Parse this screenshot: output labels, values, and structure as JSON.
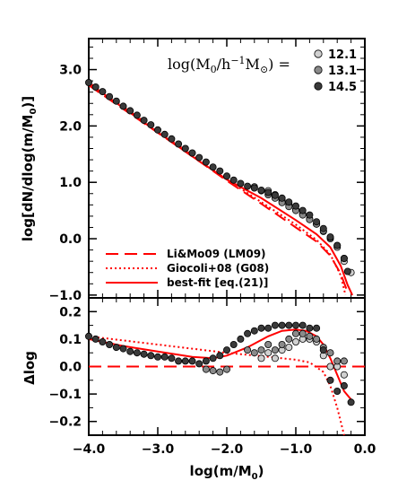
{
  "chart_data": [
    {
      "panel": "top",
      "type": "scatter",
      "xlim": [
        -4.0,
        0.0
      ],
      "ylim": [
        -1.05,
        3.55
      ],
      "ylabel": "log[dN/dlog(m/M0)]",
      "y_ticks": [
        3.0,
        2.0,
        1.0,
        0.0,
        -1.0
      ],
      "y_tick_labels": [
        "3.0",
        "2.0",
        "1.0",
        "0.0",
        "−1.0"
      ],
      "mass_legend": {
        "title": "log(M0/h⁻¹M⊙) =",
        "entries": [
          {
            "label": "12.1",
            "color": "#d0d0d0"
          },
          {
            "label": "13.1",
            "color": "#8a8a8a"
          },
          {
            "label": "14.5",
            "color": "#3a3a3a"
          }
        ]
      },
      "curves": [
        {
          "name": "Li&Mo09 (LM09)",
          "style": "dashed",
          "color": "#ff0000",
          "x": [
            -4.0,
            -3.5,
            -3.0,
            -2.5,
            -2.0,
            -1.5,
            -1.0,
            -0.7,
            -0.5,
            -0.35,
            -0.25
          ],
          "y": [
            2.72,
            2.3,
            1.88,
            1.46,
            1.03,
            0.62,
            0.2,
            -0.05,
            -0.3,
            -0.62,
            -0.95
          ]
        },
        {
          "name": "Giocoli+08 (G08)",
          "style": "dotted",
          "color": "#ff0000",
          "x": [
            -4.0,
            -3.5,
            -3.0,
            -2.5,
            -2.0,
            -1.5,
            -1.0,
            -0.7,
            -0.5,
            -0.35,
            -0.28
          ],
          "y": [
            2.78,
            2.34,
            1.91,
            1.48,
            1.05,
            0.65,
            0.25,
            -0.02,
            -0.28,
            -0.65,
            -1.0
          ]
        },
        {
          "name": "best-fit [eq.(21)]",
          "style": "solid",
          "color": "#ff0000",
          "x": [
            -4.0,
            -3.5,
            -3.0,
            -2.5,
            -2.0,
            -1.5,
            -1.0,
            -0.7,
            -0.5,
            -0.35,
            -0.25,
            -0.18
          ],
          "y": [
            2.76,
            2.32,
            1.89,
            1.46,
            1.05,
            0.72,
            0.33,
            0.08,
            -0.15,
            -0.48,
            -0.82,
            -1.0
          ]
        }
      ],
      "series": [
        {
          "name": "12.1",
          "color": "#d0d0d0",
          "x": [
            -1.4,
            -1.3,
            -1.2,
            -1.1,
            -1.0,
            -0.9,
            -0.8,
            -0.7,
            -0.6,
            -0.5,
            -0.4,
            -0.3,
            -0.2
          ],
          "y": [
            0.85,
            0.78,
            0.68,
            0.6,
            0.52,
            0.44,
            0.35,
            0.26,
            0.13,
            0.0,
            -0.15,
            -0.4,
            -0.6
          ]
        },
        {
          "name": "13.1",
          "color": "#8a8a8a",
          "x": [
            -1.6,
            -1.5,
            -1.4,
            -1.3,
            -1.2,
            -1.1,
            -1.0,
            -0.9,
            -0.8,
            -0.7,
            -0.6,
            -0.5,
            -0.4,
            -0.3
          ],
          "y": [
            0.92,
            0.85,
            0.78,
            0.72,
            0.64,
            0.57,
            0.5,
            0.42,
            0.34,
            0.26,
            0.14,
            0.02,
            -0.12,
            -0.35
          ]
        },
        {
          "name": "14.5",
          "color": "#3a3a3a",
          "x": [
            -4.0,
            -3.9,
            -3.8,
            -3.7,
            -3.6,
            -3.5,
            -3.4,
            -3.3,
            -3.2,
            -3.1,
            -3.0,
            -2.9,
            -2.8,
            -2.7,
            -2.6,
            -2.5,
            -2.4,
            -2.3,
            -2.2,
            -2.1,
            -2.0,
            -1.9,
            -1.8,
            -1.7,
            -1.6,
            -1.5,
            -1.4,
            -1.3,
            -1.2,
            -1.1,
            -1.0,
            -0.9,
            -0.8,
            -0.7,
            -0.6,
            -0.5,
            -0.4,
            -0.3,
            -0.25
          ],
          "y": [
            2.77,
            2.69,
            2.61,
            2.52,
            2.44,
            2.35,
            2.27,
            2.19,
            2.1,
            2.02,
            1.93,
            1.85,
            1.77,
            1.68,
            1.6,
            1.52,
            1.44,
            1.36,
            1.27,
            1.2,
            1.11,
            1.04,
            0.98,
            0.93,
            0.9,
            0.86,
            0.82,
            0.77,
            0.72,
            0.65,
            0.58,
            0.5,
            0.42,
            0.3,
            0.18,
            0.03,
            -0.12,
            -0.35,
            -0.58
          ]
        }
      ]
    },
    {
      "panel": "bottom",
      "type": "scatter",
      "xlim": [
        -4.0,
        0.0
      ],
      "ylim": [
        -0.25,
        0.25
      ],
      "xlabel": "log(m/M0)",
      "ylabel": "Δlog",
      "x_ticks": [
        -4.0,
        -3.0,
        -2.0,
        -1.0,
        0.0
      ],
      "x_tick_labels": [
        "−4.0",
        "−3.0",
        "−2.0",
        "−1.0",
        "0.0"
      ],
      "y_ticks": [
        0.2,
        0.1,
        0.0,
        -0.1,
        -0.2
      ],
      "y_tick_labels": [
        "0.2",
        "0.1",
        "0.0",
        "−0.1",
        "−0.2"
      ],
      "curves": [
        {
          "name": "Li&Mo09 (LM09)",
          "style": "dashed",
          "color": "#ff0000",
          "x": [
            -4.0,
            0.0
          ],
          "y": [
            0.0,
            0.0
          ]
        },
        {
          "name": "Giocoli+08 (G08)",
          "style": "dotted",
          "color": "#ff0000",
          "x": [
            -4.0,
            -3.5,
            -3.0,
            -2.5,
            -2.0,
            -1.5,
            -1.0,
            -0.8,
            -0.6,
            -0.5,
            -0.4,
            -0.3
          ],
          "y": [
            0.11,
            0.095,
            0.08,
            0.065,
            0.05,
            0.038,
            0.025,
            0.015,
            -0.02,
            -0.07,
            -0.15,
            -0.25
          ]
        },
        {
          "name": "best-fit [eq.(21)]",
          "style": "solid",
          "color": "#ff0000",
          "x": [
            -4.0,
            -3.5,
            -3.0,
            -2.5,
            -2.2,
            -2.0,
            -1.7,
            -1.4,
            -1.2,
            -1.0,
            -0.85,
            -0.7,
            -0.6,
            -0.5,
            -0.4,
            -0.3,
            -0.2
          ],
          "y": [
            0.1,
            0.075,
            0.055,
            0.035,
            0.03,
            0.04,
            0.07,
            0.11,
            0.13,
            0.135,
            0.13,
            0.11,
            0.08,
            0.03,
            -0.03,
            -0.09,
            -0.12
          ]
        }
      ],
      "series": [
        {
          "name": "12.1",
          "color": "#d0d0d0",
          "x": [
            -1.5,
            -1.4,
            -1.3,
            -1.2,
            -1.1,
            -1.0,
            -0.9,
            -0.8,
            -0.7,
            -0.6,
            -0.5,
            -0.4,
            -0.3
          ],
          "y": [
            0.03,
            0.05,
            0.03,
            0.06,
            0.07,
            0.09,
            0.1,
            0.1,
            0.09,
            0.04,
            0.0,
            0.0,
            -0.03
          ]
        },
        {
          "name": "13.1",
          "color": "#8a8a8a",
          "x": [
            -1.7,
            -1.6,
            -1.5,
            -1.4,
            -1.3,
            -1.2,
            -1.1,
            -1.0,
            -0.9,
            -0.8,
            -0.7,
            -0.6,
            -0.5,
            -0.4,
            -0.3
          ],
          "y": [
            0.06,
            0.05,
            0.06,
            0.08,
            0.06,
            0.08,
            0.1,
            0.12,
            0.12,
            0.11,
            0.1,
            0.07,
            0.05,
            0.02,
            0.02
          ]
        },
        {
          "name": "14.5",
          "color": "#3a3a3a",
          "x": [
            -4.0,
            -3.9,
            -3.8,
            -3.7,
            -3.6,
            -3.5,
            -3.4,
            -3.3,
            -3.2,
            -3.1,
            -3.0,
            -2.9,
            -2.8,
            -2.7,
            -2.6,
            -2.5,
            -2.4,
            -2.3,
            -2.2,
            -2.1,
            -2.0,
            -1.9,
            -1.8,
            -1.7,
            -1.6,
            -1.5,
            -1.4,
            -1.3,
            -1.2,
            -1.1,
            -1.0,
            -0.9,
            -0.8,
            -0.7,
            -0.6,
            -0.5,
            -0.4,
            -0.3,
            -0.2
          ],
          "y": [
            0.11,
            0.1,
            0.09,
            0.08,
            0.07,
            0.065,
            0.055,
            0.05,
            0.045,
            0.04,
            0.035,
            0.035,
            0.03,
            0.02,
            0.02,
            0.02,
            0.01,
            0.02,
            0.03,
            0.04,
            0.06,
            0.08,
            0.1,
            0.12,
            0.13,
            0.14,
            0.14,
            0.15,
            0.15,
            0.15,
            0.15,
            0.15,
            0.14,
            0.14,
            0.06,
            -0.05,
            -0.09,
            -0.07,
            -0.13
          ]
        },
        {
          "name": "low-outliers",
          "color": "#8a8a8a",
          "x": [
            -2.3,
            -2.2,
            -2.1,
            -2.0
          ],
          "y": [
            -0.01,
            -0.015,
            -0.02,
            -0.01
          ]
        }
      ]
    }
  ],
  "legend_lines": [
    {
      "label": "Li&Mo09 (LM09)",
      "style": "dashed"
    },
    {
      "label": "Giocoli+08 (G08)",
      "style": "dotted"
    },
    {
      "label": "best-fit [eq.(21)]",
      "style": "solid"
    }
  ]
}
